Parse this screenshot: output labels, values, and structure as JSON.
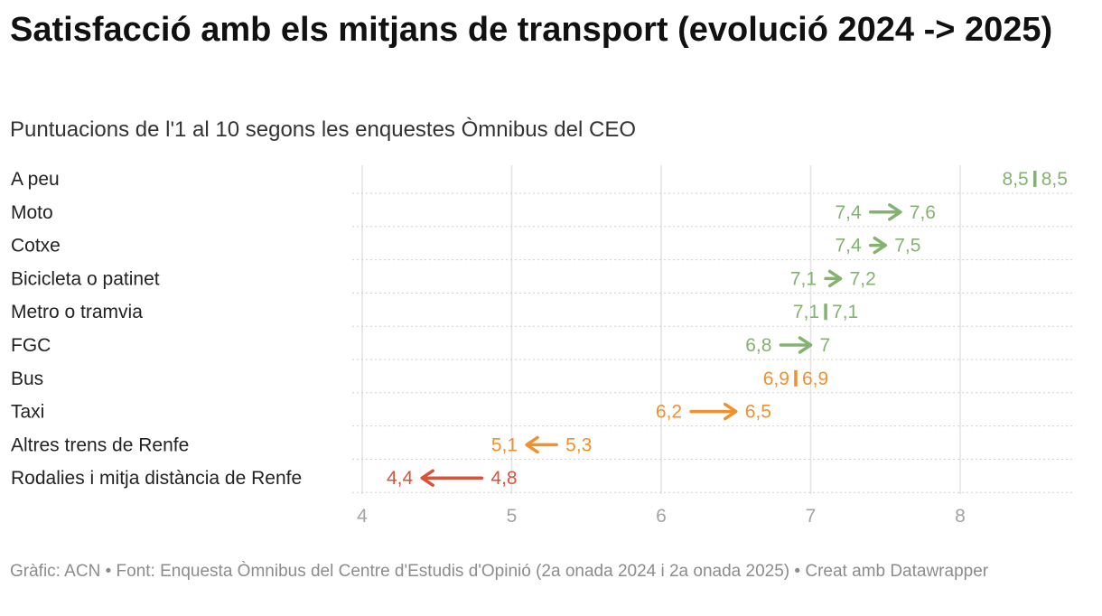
{
  "title": "Satisfacció amb els mitjans de transport (evolució 2024 -> 2025)",
  "subtitle": "Puntuacions de l'1 al 10 segons les enquestes Òmnibus del CEO",
  "footer": {
    "credit": "Gràfic: ACN",
    "source": "Font: Enquesta Òmnibus del Centre d'Estudis d'Opinió (2a onada 2024 i 2a onada 2025)",
    "tool": "Creat amb Datawrapper",
    "separator": " • "
  },
  "colors": {
    "up": "#83b36e",
    "mid": "#f0902e",
    "down": "#d9533a",
    "grid": "#e2e2e2",
    "dotted": "#cfcfcf"
  },
  "chart_data": {
    "type": "arrow",
    "title": "Satisfacció amb els mitjans de transport (evolució 2024 -> 2025)",
    "xlim": [
      4,
      8.75
    ],
    "xticks": [
      4,
      5,
      6,
      7,
      8
    ],
    "tick_labels": [
      "4",
      "5",
      "6",
      "7",
      "8"
    ],
    "series": [
      {
        "name": "2024"
      },
      {
        "name": "2025"
      }
    ],
    "rows": [
      {
        "label": "A peu",
        "from": 8.5,
        "to": 8.5,
        "from_label": "8,5",
        "to_label": "8,5",
        "color": "up"
      },
      {
        "label": "Moto",
        "from": 7.4,
        "to": 7.6,
        "from_label": "7,4",
        "to_label": "7,6",
        "color": "up"
      },
      {
        "label": "Cotxe",
        "from": 7.4,
        "to": 7.5,
        "from_label": "7,4",
        "to_label": "7,5",
        "color": "up"
      },
      {
        "label": "Bicicleta o patinet",
        "from": 7.1,
        "to": 7.2,
        "from_label": "7,1",
        "to_label": "7,2",
        "color": "up"
      },
      {
        "label": "Metro o tramvia",
        "from": 7.1,
        "to": 7.1,
        "from_label": "7,1",
        "to_label": "7,1",
        "color": "up"
      },
      {
        "label": "FGC",
        "from": 6.8,
        "to": 7.0,
        "from_label": "6,8",
        "to_label": "7",
        "color": "up"
      },
      {
        "label": "Bus",
        "from": 6.9,
        "to": 6.9,
        "from_label": "6,9",
        "to_label": "6,9",
        "color": "mid"
      },
      {
        "label": "Taxi",
        "from": 6.2,
        "to": 6.5,
        "from_label": "6,2",
        "to_label": "6,5",
        "color": "mid"
      },
      {
        "label": "Altres trens de Renfe",
        "from": 5.3,
        "to": 5.1,
        "from_label": "5,3",
        "to_label": "5,1",
        "color": "mid"
      },
      {
        "label": "Rodalies i mitja distància de Renfe",
        "from": 4.8,
        "to": 4.4,
        "from_label": "4,8",
        "to_label": "4,4",
        "color": "down"
      }
    ]
  }
}
